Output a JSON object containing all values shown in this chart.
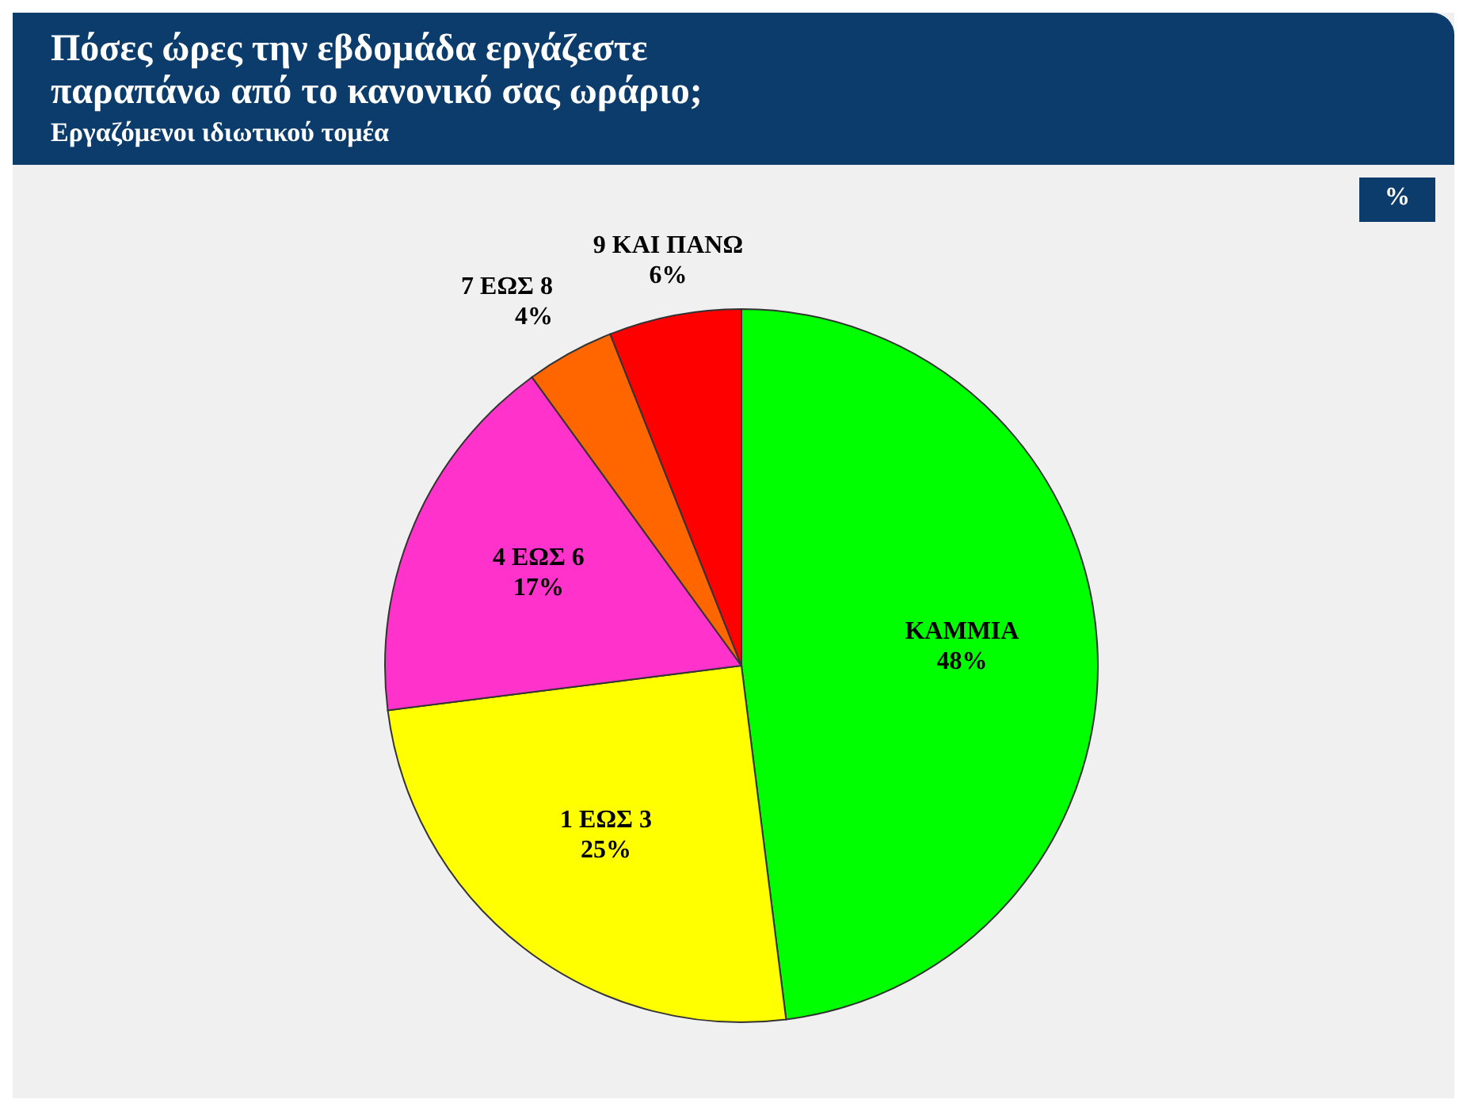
{
  "chart_data": {
    "type": "pie",
    "title": "Πόσες ώρες την εβδομάδα εργάζεστε παραπάνω από το κανονικό σας ωράριο;",
    "subtitle": "Εργαζόμενοι ιδιωτικού τομέα",
    "annotations": [
      "%"
    ],
    "categories": [
      "ΚΑΜΜΙΑ",
      "1 ΕΩΣ 3",
      "4 ΕΩΣ 6",
      "7 ΕΩΣ 8",
      "9 ΚΑΙ ΠΑΝΩ"
    ],
    "values": [
      48,
      25,
      17,
      4,
      6
    ],
    "colors": [
      "#00ff00",
      "#ffff00",
      "#ff33cc",
      "#ff6600",
      "#ff0000"
    ],
    "value_labels": [
      "48%",
      "25%",
      "17%",
      "4%",
      "6%"
    ]
  }
}
